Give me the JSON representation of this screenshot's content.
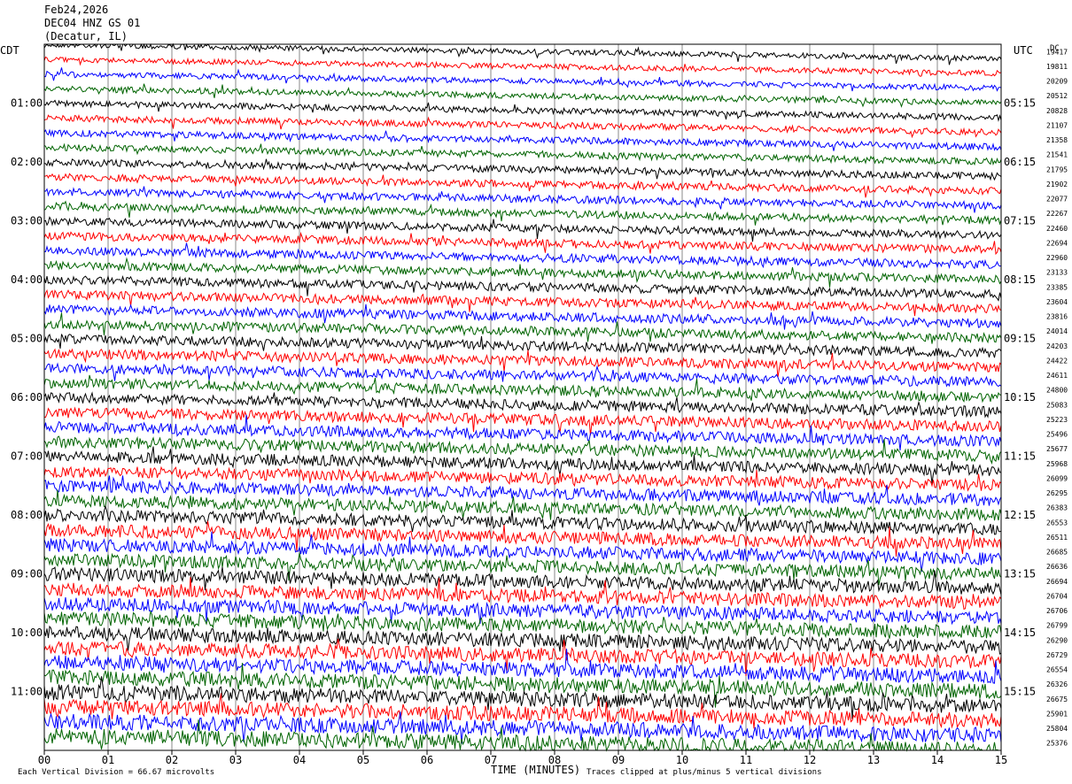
{
  "header": {
    "date": "Feb24,2026",
    "station": "DEC04 HNZ GS 01",
    "location": "(Decatur, IL)"
  },
  "left_axis_label": "CDT",
  "right_axis_label": "UTC",
  "dc_label": "DC",
  "footer": {
    "scale_note": "Each Vertical Division =   66.67 microvolts",
    "x_axis_title": "TIME (MINUTES)",
    "clip_note": "Traces clipped at plus/minus 5 vertical divisions"
  },
  "chart_data": {
    "type": "line",
    "x_ticks": [
      "00",
      "01",
      "02",
      "03",
      "04",
      "05",
      "06",
      "07",
      "08",
      "09",
      "10",
      "11",
      "12",
      "13",
      "14",
      "15"
    ],
    "xlim": [
      0,
      15
    ],
    "rows": 48,
    "minutes_per_row": 15,
    "trace_colors": [
      "#000000",
      "#ff0000",
      "#0000ff",
      "#006400"
    ],
    "left_time_labels": [
      "01:00",
      "02:00",
      "03:00",
      "04:00",
      "05:00",
      "06:00",
      "07:00",
      "08:00",
      "09:00",
      "10:00",
      "11:00"
    ],
    "right_time_labels": [
      "05:15",
      "06:15",
      "07:15",
      "08:15",
      "09:15",
      "10:15",
      "11:15",
      "12:15",
      "13:15",
      "14:15",
      "15:15"
    ],
    "dc_offsets": [
      "19417",
      "19811",
      "20209",
      "20512",
      "20828",
      "21107",
      "21358",
      "21541",
      "21795",
      "21902",
      "22077",
      "22267",
      "22460",
      "22694",
      "22960",
      "23133",
      "23385",
      "23604",
      "23816",
      "24014",
      "24203",
      "24422",
      "24611",
      "24800",
      "25083",
      "25223",
      "25496",
      "25677",
      "25968",
      "26099",
      "26295",
      "26383",
      "26553",
      "26511",
      "26685",
      "26636",
      "26694",
      "26704",
      "26706",
      "26799",
      "26290",
      "26729",
      "26554",
      "26326",
      "26675",
      "25901",
      "25804",
      "25376"
    ]
  }
}
